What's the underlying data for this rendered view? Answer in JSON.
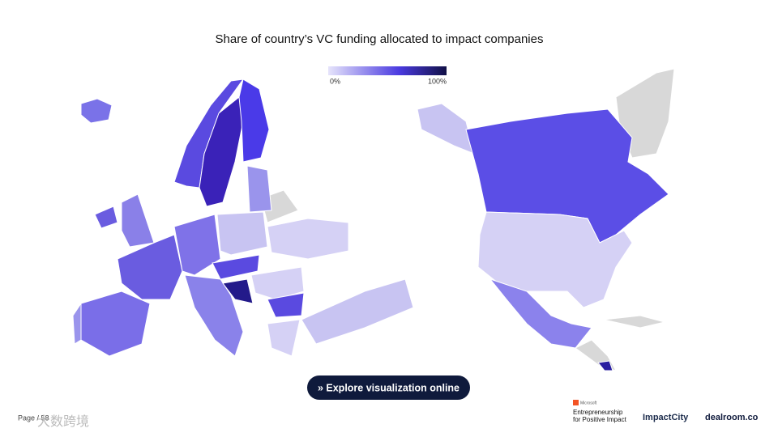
{
  "header": {
    "title": "Share of country’s VC funding allocated to impact companies"
  },
  "legend": {
    "min_label": "0%",
    "max_label": "100%"
  },
  "button": {
    "label": "» Explore visualization online"
  },
  "footer": {
    "page": "Page / 58",
    "watermark": "大数跨境"
  },
  "logos": {
    "microsoft": "Microsoft",
    "efpi": [
      "Entrepreneurship",
      "for Positive Impact"
    ],
    "impactcity": "ImpactCity",
    "dealroom": "dealroom.co"
  }
}
